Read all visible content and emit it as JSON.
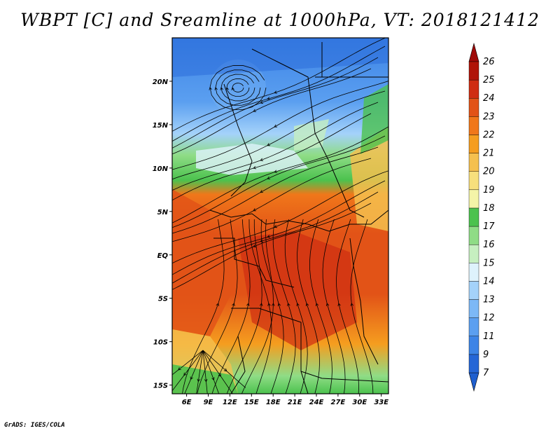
{
  "title": "WBPT [C] and Sreamline at 1000hPa, VT: 2018121412",
  "footer": "GrADS: IGES/COLA",
  "map": {
    "lon_labels": [
      "6E",
      "9E",
      "12E",
      "15E",
      "18E",
      "21E",
      "24E",
      "27E",
      "30E",
      "33E"
    ],
    "lat_labels": [
      "20N",
      "15N",
      "10N",
      "5N",
      "EQ",
      "5S",
      "10S",
      "15S"
    ],
    "lon_range": [
      4,
      34
    ],
    "lat_range": [
      -16,
      25
    ]
  },
  "colorbar": {
    "levels": [
      "7",
      "9",
      "11",
      "12",
      "13",
      "14",
      "15",
      "16",
      "17",
      "18",
      "19",
      "20",
      "21",
      "22",
      "23",
      "24",
      "25",
      "26"
    ],
    "colors": [
      "#2566d6",
      "#3d84e6",
      "#5b9ff0",
      "#7cb8f6",
      "#a4d2fa",
      "#def2fc",
      "#c6efc0",
      "#8fdc86",
      "#4cc24e",
      "#f4f4a8",
      "#f7df7c",
      "#f5c04f",
      "#f59d1f",
      "#f0771a",
      "#e25317",
      "#cf2d12",
      "#b01408"
    ],
    "under_color": "#1f5fce",
    "over_color": "#a00a08"
  }
}
